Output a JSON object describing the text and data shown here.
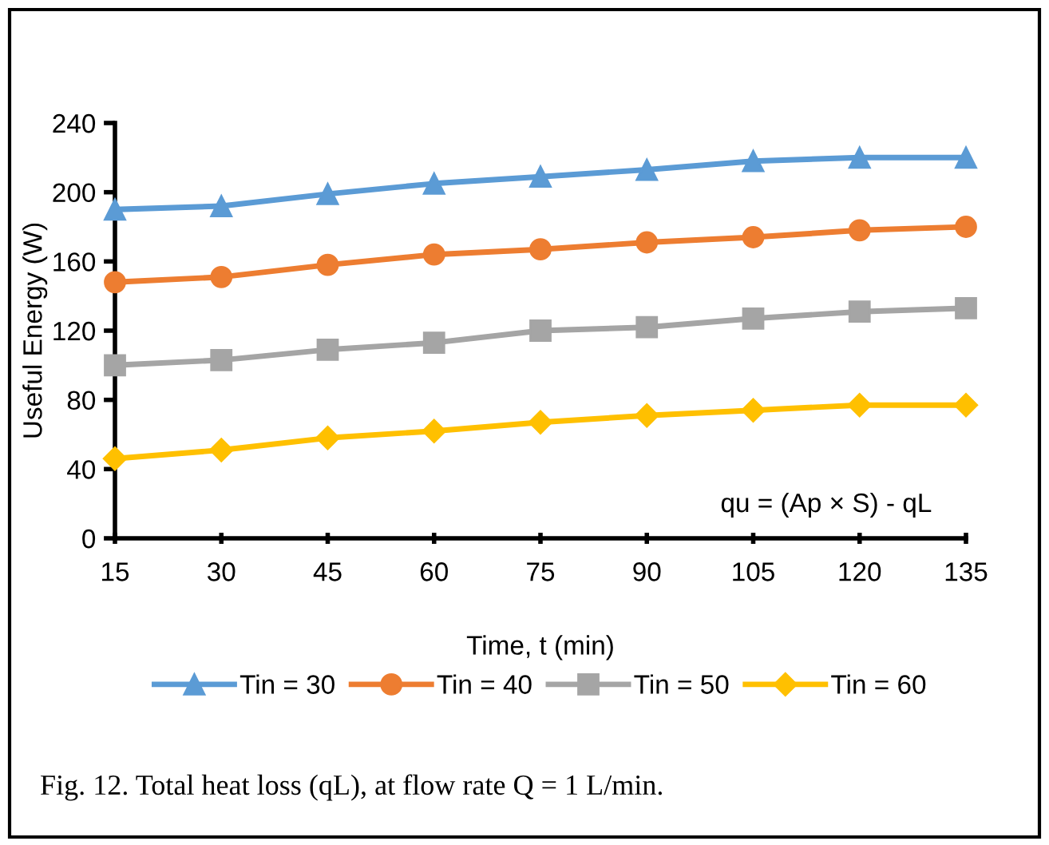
{
  "chart_data": {
    "type": "line",
    "xlabel": "Time, t (min)",
    "ylabel": "Useful Energy (W)",
    "x": [
      15,
      30,
      45,
      60,
      75,
      90,
      105,
      120,
      135
    ],
    "series": [
      {
        "name": "Tin = 30",
        "color": "#5b9bd5",
        "marker": "triangle",
        "values": [
          190,
          192,
          199,
          205,
          209,
          213,
          218,
          220,
          220
        ]
      },
      {
        "name": "Tin = 40",
        "color": "#ed7d31",
        "marker": "circle",
        "values": [
          148,
          151,
          158,
          164,
          167,
          171,
          174,
          178,
          180
        ]
      },
      {
        "name": "Tin = 50",
        "color": "#a5a5a5",
        "marker": "square",
        "values": [
          100,
          103,
          109,
          113,
          120,
          122,
          127,
          131,
          133
        ]
      },
      {
        "name": "Tin = 60",
        "color": "#ffc000",
        "marker": "diamond",
        "values": [
          46,
          51,
          58,
          62,
          67,
          71,
          74,
          77,
          77
        ]
      }
    ],
    "xlim": [
      15,
      135
    ],
    "xticks": [
      15,
      30,
      45,
      60,
      75,
      90,
      105,
      120,
      135
    ],
    "ylim": [
      0,
      240
    ],
    "yticks": [
      0,
      40,
      80,
      120,
      160,
      200,
      240
    ],
    "grid": false,
    "legend": "bottom",
    "annotations": [
      "qu = (Ap × S) - qL",
      "Fig. 12. Total heat loss (qL), at flow rate Q = 1 L/min."
    ]
  }
}
